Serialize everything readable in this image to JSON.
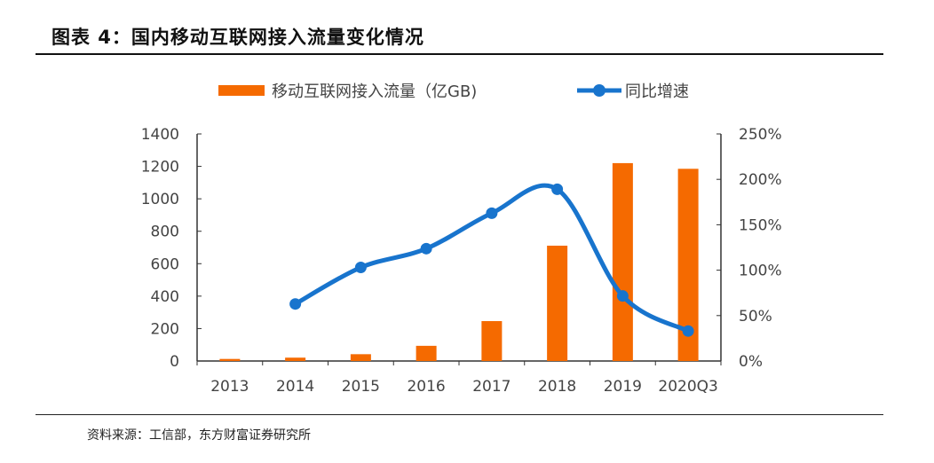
{
  "title": "图表 4：国内移动互联网接入流量变化情况",
  "source": "资料来源：工信部，东方财富证券研究所",
  "chart_data": {
    "type": "bar+line",
    "categories": [
      "2013",
      "2014",
      "2015",
      "2016",
      "2017",
      "2018",
      "2019",
      "2020Q3"
    ],
    "series": [
      {
        "name": "移动互联网接入流量（亿GB)",
        "type": "bar",
        "axis": "left",
        "color": "#F56A00",
        "values": [
          12.7,
          20.6,
          41.9,
          93.6,
          246,
          711,
          1220,
          1185
        ]
      },
      {
        "name": "同比增速",
        "type": "line",
        "axis": "right",
        "color": "#1874CD",
        "unit": "%",
        "values": [
          null,
          62.8,
          103,
          123.7,
          162.7,
          189.1,
          71.6,
          33
        ]
      }
    ],
    "y_left": {
      "range": [
        0,
        1400
      ],
      "ticks": [
        "0",
        "200",
        "400",
        "600",
        "800",
        "1000",
        "1200",
        "1400"
      ]
    },
    "y_right": {
      "range": [
        0,
        250
      ],
      "ticks": [
        "0%",
        "50%",
        "100%",
        "150%",
        "200%",
        "250%"
      ]
    },
    "grid": false,
    "legend": "top"
  }
}
